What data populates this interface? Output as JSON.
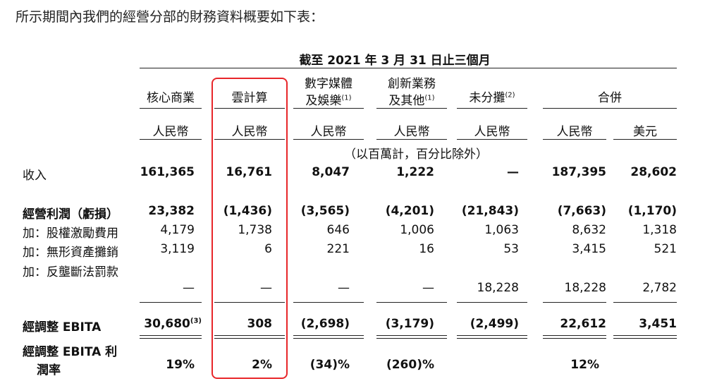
{
  "intro": "所示期間內我們的經營分部的財務資料概要如下表：",
  "period": "截至 2021 年 3 月 31 日止三個月",
  "columns": [
    {
      "line1": "核心商業",
      "line2": "",
      "sup": "",
      "currency": "人民幣"
    },
    {
      "line1": "雲計算",
      "line2": "",
      "sup": "",
      "currency": "人民幣"
    },
    {
      "line1": "數字媒體",
      "line2": "及娛樂",
      "sup": "(1)",
      "currency": "人民幣"
    },
    {
      "line1": "創新業務",
      "line2": "及其他",
      "sup": "(1)",
      "currency": "人民幣"
    },
    {
      "line1": "未分攤",
      "line2": "",
      "sup": "(2)",
      "currency": "人民幣"
    }
  ],
  "combined": {
    "label": "合併",
    "currency_cny": "人民幣",
    "currency_usd": "美元"
  },
  "unit_note": "（以百萬計，百分比除外）",
  "rows": {
    "revenue": {
      "label": "收入",
      "v": [
        "161,365",
        "16,761",
        "8,047",
        "1,222",
        "—",
        "187,395",
        "28,602"
      ]
    },
    "op_income": {
      "label": "經營利潤（虧損）",
      "v": [
        "23,382",
        "(1,436)",
        "(3,565)",
        "(4,201)",
        "(21,843)",
        "(7,663)",
        "(1,170)"
      ]
    },
    "share_comp": {
      "label": "加：股權激勵費用",
      "v": [
        "4,179",
        "1,738",
        "646",
        "1,006",
        "1,063",
        "8,632",
        "1,318"
      ]
    },
    "amortization": {
      "label": "加：無形資產攤銷",
      "v": [
        "3,119",
        "6",
        "221",
        "16",
        "53",
        "3,415",
        "521"
      ]
    },
    "fine": {
      "label": "加：反壟斷法罰款",
      "v": [
        "—",
        "—",
        "—",
        "—",
        "18,228",
        "18,228",
        "2,782"
      ]
    },
    "ebita": {
      "label": "經調整 EBITA",
      "v": [
        "30,680",
        "308",
        "(2,698)",
        "(3,179)",
        "(2,499)",
        "22,612",
        "3,451"
      ],
      "sup0": "(3)"
    },
    "margin": {
      "label1": "經調整 EBITA 利",
      "label2": "潤率",
      "v": [
        "19%",
        "2%",
        "(34)%",
        "(260)%",
        "",
        "12%",
        ""
      ]
    }
  },
  "colors": {
    "highlight_box": "#e8262a"
  }
}
